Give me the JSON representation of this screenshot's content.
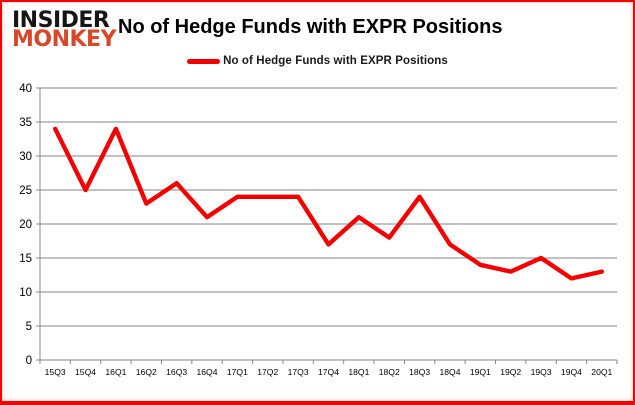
{
  "logo": {
    "line1": "INSIDER",
    "line2": "MONKEY"
  },
  "header": {
    "title": "No of Hedge Funds with EXPR Positions"
  },
  "legend": {
    "label": "No of Hedge Funds with EXPR Positions"
  },
  "colors": {
    "line": "#f50000",
    "grid": "#868686",
    "axis": "#868686",
    "tick_text": "#000000",
    "logo_accent": "#d9472b",
    "frame_border": "#f40000"
  },
  "chart_data": {
    "type": "line",
    "title": "No of Hedge Funds with EXPR Positions",
    "categories": [
      "15Q3",
      "15Q4",
      "16Q1",
      "16Q2",
      "16Q3",
      "16Q4",
      "17Q1",
      "17Q2",
      "17Q3",
      "17Q4",
      "18Q1",
      "18Q2",
      "18Q3",
      "18Q4",
      "19Q1",
      "19Q2",
      "19Q3",
      "19Q4",
      "20Q1"
    ],
    "series": [
      {
        "name": "No of Hedge Funds with EXPR Positions",
        "values": [
          34,
          25,
          34,
          23,
          26,
          21,
          24,
          24,
          24,
          17,
          21,
          18,
          24,
          17,
          14,
          13,
          15,
          12,
          13
        ]
      }
    ],
    "xlabel": "",
    "ylabel": "",
    "ylim": [
      0,
      40
    ],
    "yticks": [
      0,
      5,
      10,
      15,
      20,
      25,
      30,
      35,
      40
    ],
    "grid": true,
    "legend_position": "top"
  }
}
